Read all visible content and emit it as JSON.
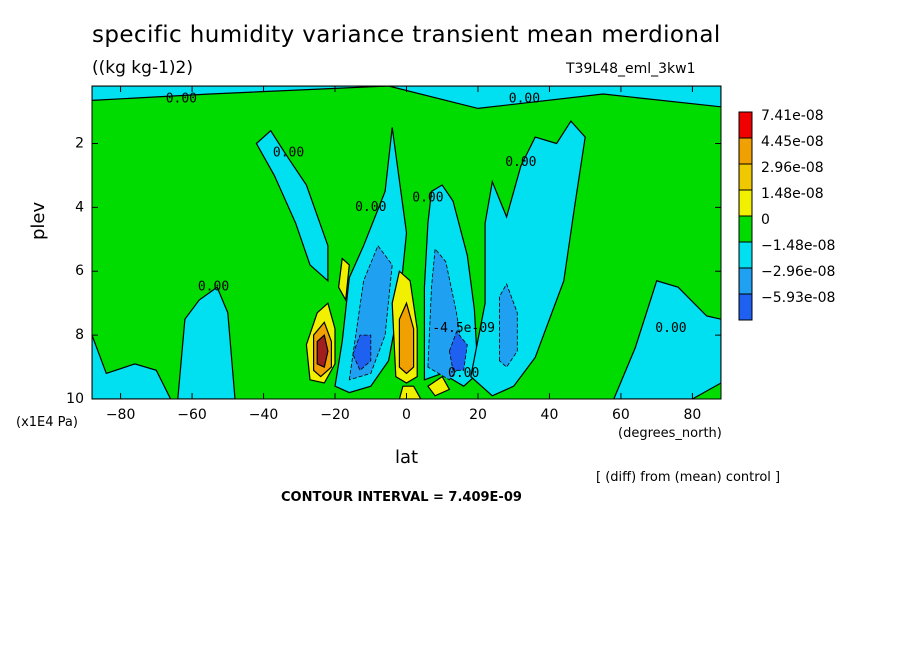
{
  "header": {
    "title": "specific humidity variance transient mean merdional",
    "units": "((kg kg-1)2)",
    "run_label": "T39L48_eml_3kw1"
  },
  "footer": {
    "y_units": "(x1E4 Pa)",
    "x_units": "(degrees_north)",
    "diff_note": "[ (diff) from (mean) control ]",
    "contour_interval": "CONTOUR INTERVAL = 7.409E-09"
  },
  "colors": {
    "red": "#f00000",
    "orange": "#f0a000",
    "yellow": "#f0f000",
    "green": "#00dc00",
    "cyan": "#00e0f0",
    "mid_blue": "#20a0f0",
    "blue": "#1e60f0",
    "dark_red": "#a01e1e"
  },
  "chart_data": {
    "type": "heatmap",
    "subtype": "filled contour",
    "title": "specific humidity variance transient mean merdional",
    "xlabel": "lat",
    "ylabel": "plev",
    "xlim": [
      -88,
      88
    ],
    "ylim": [
      10,
      0.2
    ],
    "y_inverted": true,
    "x_ticks": [
      -80,
      -60,
      -40,
      -20,
      0,
      20,
      40,
      60,
      80
    ],
    "y_ticks": [
      2,
      4,
      6,
      8,
      10
    ],
    "background_level": "0",
    "legend": {
      "position": "right",
      "entries": [
        {
          "label": "7.41e-08",
          "color": "#f00000"
        },
        {
          "label": "4.45e-08",
          "color": "#f0a000"
        },
        {
          "label": "2.96e-08",
          "color": "#f0c800"
        },
        {
          "label": "1.48e-08",
          "color": "#f0f000"
        },
        {
          "label": "0",
          "color": "#00dc00"
        },
        {
          "label": "-1.48e-08",
          "color": "#00e0f0"
        },
        {
          "label": "-2.96e-08",
          "color": "#20a0f0"
        },
        {
          "label": "-5.93e-08",
          "color": "#1e60f0"
        }
      ]
    },
    "contour_labels": [
      {
        "text": "0.00",
        "lat": -63,
        "plev": 0.6
      },
      {
        "text": "0.00",
        "lat": 33,
        "plev": 0.6
      },
      {
        "text": "0.00",
        "lat": -33,
        "plev": 2.3
      },
      {
        "text": "0.00",
        "lat": 32,
        "plev": 2.6
      },
      {
        "text": "0.00",
        "lat": 6,
        "plev": 3.7
      },
      {
        "text": "0.00",
        "lat": -10,
        "plev": 4.0
      },
      {
        "text": "0.00",
        "lat": -54,
        "plev": 6.5
      },
      {
        "text": "0.00",
        "lat": 74,
        "plev": 7.8
      },
      {
        "text": "-4.5e-09",
        "lat": 16,
        "plev": 7.8
      },
      {
        "text": "0.00",
        "lat": 16,
        "plev": 9.2
      }
    ],
    "regions": [
      {
        "level": -1.48e-08,
        "color": "cyan",
        "points": [
          [
            -88,
            0.2
          ],
          [
            88,
            0.2
          ],
          [
            88,
            0.85
          ],
          [
            55,
            0.45
          ],
          [
            20,
            0.9
          ],
          [
            -5,
            0.2
          ],
          [
            -55,
            0.45
          ],
          [
            -88,
            0.65
          ]
        ]
      },
      {
        "level": -1.48e-08,
        "color": "cyan",
        "points": [
          [
            -42,
            2.0
          ],
          [
            -38,
            1.6
          ],
          [
            -34,
            2.3
          ],
          [
            -28,
            3.3
          ],
          [
            -22,
            5.2
          ],
          [
            -22,
            6.3
          ],
          [
            -27,
            5.8
          ],
          [
            -31,
            4.5
          ],
          [
            -37,
            3.0
          ]
        ]
      },
      {
        "level": -1.48e-08,
        "color": "cyan",
        "points": [
          [
            -64,
            10
          ],
          [
            -62,
            7.5
          ],
          [
            -58,
            6.9
          ],
          [
            -53,
            6.5
          ],
          [
            -50,
            7.3
          ],
          [
            -48,
            10
          ]
        ]
      },
      {
        "level": -1.48e-08,
        "color": "cyan",
        "points": [
          [
            -88,
            8.0
          ],
          [
            -84,
            9.2
          ],
          [
            -76,
            8.9
          ],
          [
            -70,
            9.1
          ],
          [
            -66,
            10
          ],
          [
            -88,
            10
          ]
        ]
      },
      {
        "level": -1.48e-08,
        "color": "cyan",
        "points": [
          [
            -20,
            9.6
          ],
          [
            -18,
            8.2
          ],
          [
            -16,
            6.2
          ],
          [
            -12,
            5.2
          ],
          [
            -6,
            3.5
          ],
          [
            -4,
            1.5
          ],
          [
            0,
            4.8
          ],
          [
            -2,
            7.0
          ],
          [
            -5,
            8.8
          ],
          [
            -10,
            9.6
          ],
          [
            -16,
            9.8
          ]
        ]
      },
      {
        "level": -1.48e-08,
        "color": "cyan",
        "points": [
          [
            5,
            9.4
          ],
          [
            5,
            6.5
          ],
          [
            6,
            4.5
          ],
          [
            7,
            3.5
          ],
          [
            10,
            3.3
          ],
          [
            13,
            3.8
          ],
          [
            17,
            5.5
          ],
          [
            19,
            7.2
          ],
          [
            20,
            9.2
          ],
          [
            16,
            9.6
          ],
          [
            10,
            9.2
          ]
        ]
      },
      {
        "level": -1.48e-08,
        "color": "cyan",
        "points": [
          [
            18,
            9.3
          ],
          [
            22,
            7.0
          ],
          [
            22,
            4.5
          ],
          [
            24,
            3.2
          ],
          [
            28,
            4.3
          ],
          [
            32,
            2.7
          ],
          [
            36,
            1.8
          ],
          [
            42,
            2.0
          ],
          [
            46,
            1.3
          ],
          [
            50,
            1.8
          ],
          [
            47,
            4.0
          ],
          [
            44,
            6.3
          ],
          [
            36,
            8.7
          ],
          [
            30,
            9.6
          ],
          [
            24,
            9.9
          ]
        ]
      },
      {
        "level": -1.48e-08,
        "color": "cyan",
        "points": [
          [
            58,
            10
          ],
          [
            64,
            8.4
          ],
          [
            70,
            6.3
          ],
          [
            76,
            6.5
          ],
          [
            84,
            7.4
          ],
          [
            88,
            7.5
          ],
          [
            88,
            9.5
          ],
          [
            80,
            10
          ]
        ]
      },
      {
        "level": -2.96e-08,
        "color": "mid_blue",
        "points": [
          [
            -16,
            9.4
          ],
          [
            -12,
            6.3
          ],
          [
            -8,
            5.2
          ],
          [
            -4,
            5.8
          ],
          [
            -6,
            8.0
          ],
          [
            -10,
            9.2
          ]
        ]
      },
      {
        "level": -2.96e-08,
        "color": "mid_blue",
        "points": [
          [
            6,
            9.0
          ],
          [
            7,
            6.5
          ],
          [
            8,
            5.3
          ],
          [
            11,
            5.7
          ],
          [
            14,
            7.3
          ],
          [
            16,
            8.8
          ],
          [
            12,
            9.4
          ]
        ]
      },
      {
        "level": -2.96e-08,
        "color": "mid_blue",
        "points": [
          [
            26,
            8.8
          ],
          [
            26,
            6.8
          ],
          [
            28,
            6.4
          ],
          [
            31,
            7.3
          ],
          [
            31,
            8.5
          ],
          [
            28,
            9.0
          ]
        ]
      },
      {
        "level": -5.93e-08,
        "color": "blue",
        "points": [
          [
            -15,
            8.6
          ],
          [
            -13,
            8.0
          ],
          [
            -10,
            8.0
          ],
          [
            -10,
            8.8
          ],
          [
            -13,
            9.1
          ]
        ]
      },
      {
        "level": -5.93e-08,
        "color": "blue",
        "points": [
          [
            12,
            8.5
          ],
          [
            14,
            7.9
          ],
          [
            17,
            8.3
          ],
          [
            16,
            9.1
          ],
          [
            13,
            9.1
          ]
        ]
      },
      {
        "level": 1.48e-08,
        "color": "yellow",
        "points": [
          [
            -27,
            9.4
          ],
          [
            -28,
            8.3
          ],
          [
            -25,
            7.3
          ],
          [
            -22,
            7.0
          ],
          [
            -20,
            7.8
          ],
          [
            -20,
            8.9
          ],
          [
            -23,
            9.5
          ]
        ]
      },
      {
        "level": 1.48e-08,
        "color": "yellow",
        "points": [
          [
            -19,
            6.5
          ],
          [
            -18,
            5.6
          ],
          [
            -16,
            5.8
          ],
          [
            -17,
            6.9
          ]
        ]
      },
      {
        "level": 1.48e-08,
        "color": "yellow",
        "points": [
          [
            -3,
            9.3
          ],
          [
            -4,
            7.0
          ],
          [
            -2,
            6.0
          ],
          [
            1,
            6.3
          ],
          [
            3,
            7.8
          ],
          [
            3,
            9.3
          ],
          [
            0,
            9.5
          ]
        ]
      },
      {
        "level": 1.48e-08,
        "color": "yellow",
        "points": [
          [
            6,
            9.6
          ],
          [
            10,
            9.3
          ],
          [
            12,
            9.7
          ],
          [
            8,
            9.9
          ]
        ]
      },
      {
        "level": 1.48e-08,
        "color": "yellow",
        "points": [
          [
            -2,
            10
          ],
          [
            -1,
            9.6
          ],
          [
            2,
            9.6
          ],
          [
            4,
            10
          ]
        ]
      },
      {
        "level": 2.96e-08,
        "color": "orange",
        "points": [
          [
            -26,
            9.1
          ],
          [
            -26,
            8.0
          ],
          [
            -23,
            7.6
          ],
          [
            -21,
            8.2
          ],
          [
            -21,
            9.0
          ],
          [
            -24,
            9.3
          ]
        ]
      },
      {
        "level": 2.96e-08,
        "color": "orange",
        "points": [
          [
            -2,
            9.0
          ],
          [
            -2,
            7.5
          ],
          [
            0,
            7.0
          ],
          [
            2,
            7.8
          ],
          [
            2,
            9.0
          ],
          [
            0,
            9.2
          ]
        ]
      },
      {
        "level": 7.41e-08,
        "color": "dark_red",
        "points": [
          [
            -25,
            8.9
          ],
          [
            -25,
            8.2
          ],
          [
            -23,
            8.0
          ],
          [
            -22,
            8.5
          ],
          [
            -23,
            9.0
          ]
        ]
      }
    ]
  }
}
